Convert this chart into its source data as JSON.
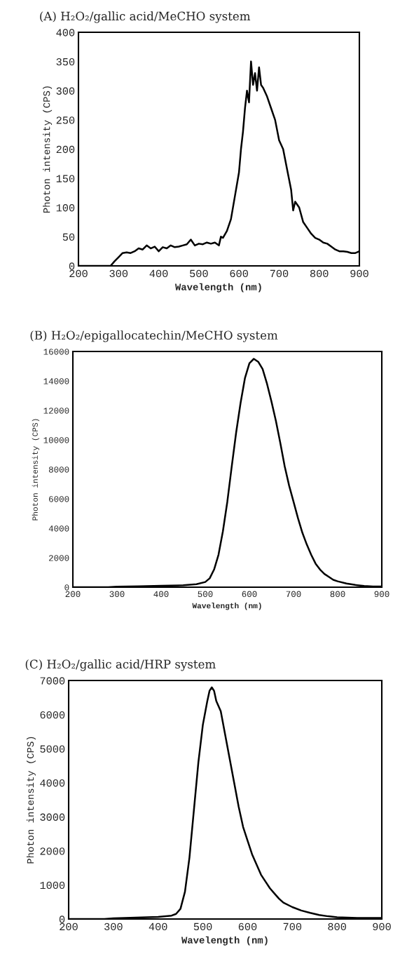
{
  "chart_data": [
    {
      "type": "line",
      "title": "(A) H₂O₂/gallic acid/MeCHO system",
      "xlabel": "Wavelength (nm)",
      "ylabel": "Photon intensity (CPS)",
      "x": [
        200,
        250,
        280,
        290,
        300,
        310,
        320,
        330,
        340,
        350,
        360,
        370,
        380,
        390,
        400,
        410,
        420,
        430,
        440,
        450,
        460,
        470,
        480,
        490,
        500,
        510,
        520,
        530,
        540,
        550,
        555,
        560,
        570,
        580,
        590,
        600,
        605,
        610,
        615,
        620,
        625,
        630,
        635,
        640,
        645,
        650,
        655,
        660,
        670,
        680,
        690,
        700,
        710,
        720,
        730,
        735,
        740,
        750,
        760,
        770,
        780,
        790,
        800,
        810,
        820,
        830,
        840,
        850,
        860,
        870,
        880,
        890,
        900
      ],
      "series": [
        {
          "color": "#000000",
          "values": [
            0,
            0,
            0,
            8,
            15,
            22,
            23,
            22,
            25,
            30,
            28,
            35,
            30,
            33,
            25,
            32,
            30,
            35,
            32,
            33,
            35,
            37,
            45,
            35,
            38,
            37,
            40,
            38,
            40,
            35,
            50,
            48,
            60,
            80,
            120,
            160,
            200,
            230,
            270,
            300,
            280,
            350,
            310,
            330,
            300,
            340,
            310,
            305,
            290,
            270,
            250,
            215,
            200,
            165,
            130,
            95,
            110,
            100,
            75,
            65,
            55,
            48,
            45,
            40,
            38,
            33,
            28,
            25,
            25,
            24,
            22,
            22,
            25
          ]
        }
      ],
      "xlim": [
        200,
        900
      ],
      "ylim": [
        0,
        400
      ],
      "xticks": [
        200,
        300,
        400,
        500,
        600,
        700,
        800,
        900
      ],
      "yticks": [
        0,
        50,
        100,
        150,
        200,
        250,
        300,
        350,
        400
      ]
    },
    {
      "type": "line",
      "title": "(B) H₂O₂/epigallocatechin/MeCHO system",
      "xlabel": "Wavelength (nm)",
      "ylabel": "Photon intensity (CPS)",
      "x": [
        200,
        280,
        300,
        350,
        400,
        450,
        480,
        500,
        510,
        520,
        530,
        540,
        550,
        560,
        570,
        580,
        590,
        600,
        610,
        620,
        630,
        640,
        650,
        660,
        670,
        680,
        690,
        700,
        710,
        720,
        730,
        740,
        750,
        760,
        770,
        780,
        790,
        800,
        820,
        840,
        860,
        880,
        900
      ],
      "series": [
        {
          "color": "#000000",
          "values": [
            0,
            0,
            30,
            60,
            100,
            130,
            200,
            350,
            600,
            1200,
            2200,
            3800,
            5800,
            8200,
            10500,
            12500,
            14200,
            15200,
            15500,
            15300,
            14800,
            13800,
            12600,
            11300,
            9800,
            8200,
            6900,
            5800,
            4700,
            3700,
            2900,
            2200,
            1600,
            1200,
            900,
            700,
            500,
            400,
            250,
            150,
            80,
            50,
            50
          ]
        }
      ],
      "xlim": [
        200,
        900
      ],
      "ylim": [
        0,
        16000
      ],
      "xticks": [
        200,
        300,
        400,
        500,
        600,
        700,
        800,
        900
      ],
      "yticks": [
        0,
        2000,
        4000,
        6000,
        8000,
        10000,
        12000,
        14000,
        16000
      ]
    },
    {
      "type": "line",
      "title": "(C) H₂O₂/gallic acid/HRP system",
      "xlabel": "Wavelength (nm)",
      "ylabel": "Photon intensity (CPS)",
      "x": [
        200,
        280,
        300,
        350,
        400,
        430,
        440,
        450,
        460,
        470,
        480,
        490,
        500,
        510,
        515,
        520,
        525,
        530,
        540,
        550,
        560,
        570,
        580,
        590,
        600,
        610,
        620,
        630,
        640,
        650,
        660,
        670,
        680,
        700,
        720,
        740,
        760,
        780,
        800,
        850,
        900
      ],
      "series": [
        {
          "color": "#000000",
          "values": [
            0,
            0,
            20,
            40,
            60,
            100,
            150,
            300,
            800,
            1800,
            3200,
            4600,
            5700,
            6400,
            6700,
            6800,
            6700,
            6400,
            6100,
            5400,
            4700,
            4000,
            3300,
            2700,
            2300,
            1900,
            1600,
            1300,
            1100,
            900,
            750,
            600,
            480,
            350,
            250,
            180,
            120,
            80,
            50,
            30,
            30
          ]
        }
      ],
      "xlim": [
        200,
        900
      ],
      "ylim": [
        0,
        7000
      ],
      "xticks": [
        200,
        300,
        400,
        500,
        600,
        700,
        800,
        900
      ],
      "yticks": [
        0,
        1000,
        2000,
        3000,
        4000,
        5000,
        6000,
        7000
      ]
    }
  ]
}
